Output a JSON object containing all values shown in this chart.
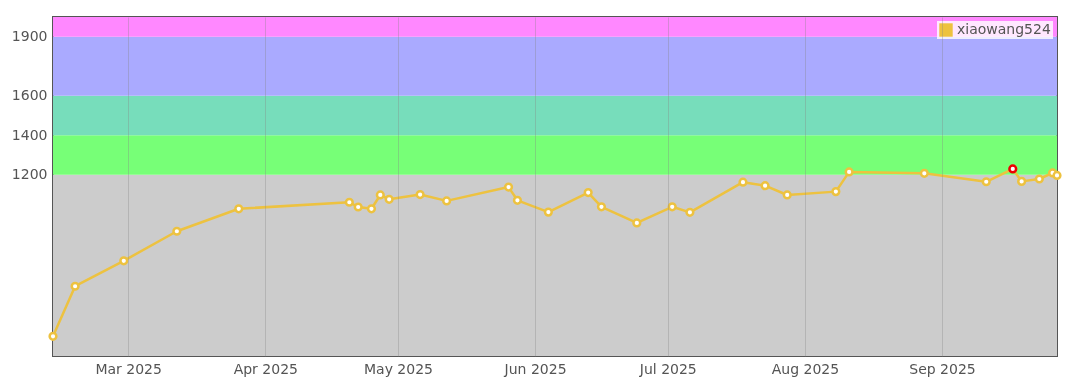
{
  "chart_data": {
    "type": "line",
    "x": [
      "2025-02-12",
      "2025-02-17",
      "2025-02-28",
      "2025-03-12",
      "2025-03-26",
      "2025-04-20",
      "2025-04-22",
      "2025-04-25",
      "2025-04-27",
      "2025-04-29",
      "2025-05-06",
      "2025-05-12",
      "2025-05-26",
      "2025-05-28",
      "2025-06-04",
      "2025-06-13",
      "2025-06-16",
      "2025-06-24",
      "2025-07-02",
      "2025-07-06",
      "2025-07-18",
      "2025-07-23",
      "2025-07-28",
      "2025-08-08",
      "2025-08-11",
      "2025-08-28",
      "2025-09-11",
      "2025-09-17",
      "2025-09-19",
      "2025-09-23",
      "2025-09-26",
      "2025-09-27"
    ],
    "series": [
      {
        "name": "xiaowang524",
        "color": "#edc240",
        "values": [
          380,
          634,
          763,
          913,
          1027,
          1060,
          1036,
          1027,
          1097,
          1075,
          1099,
          1067,
          1137,
          1070,
          1010,
          1109,
          1037,
          955,
          1037,
          1009,
          1162,
          1144,
          1097,
          1114,
          1214,
          1207,
          1164,
          1229,
          1166,
          1178,
          1209,
          1196
        ],
        "colors": [
          "#edc240",
          "#edc240",
          "#edc240",
          "#edc240",
          "#edc240",
          "#edc240",
          "#edc240",
          "#edc240",
          "#edc240",
          "#edc240",
          "#edc240",
          "#edc240",
          "#edc240",
          "#edc240",
          "#edc240",
          "#edc240",
          "#edc240",
          "#edc240",
          "#edc240",
          "#edc240",
          "#edc240",
          "#edc240",
          "#edc240",
          "#edc240",
          "#edc240",
          "#edc240",
          "#edc240",
          "#ee0000",
          "#edc240",
          "#edc240",
          "#edc240",
          "#edc240"
        ]
      }
    ],
    "xlim": [
      "2025-02-12",
      "2025-09-27"
    ],
    "xticks": [
      {
        "value": "2025-03-01",
        "label": "Mar 2025"
      },
      {
        "value": "2025-04-01",
        "label": "Apr 2025"
      },
      {
        "value": "2025-05-01",
        "label": "May 2025"
      },
      {
        "value": "2025-06-01",
        "label": "Jun 2025"
      },
      {
        "value": "2025-07-01",
        "label": "Jul 2025"
      },
      {
        "value": "2025-08-01",
        "label": "Aug 2025"
      },
      {
        "value": "2025-09-01",
        "label": "Sep 2025"
      }
    ],
    "ylim": [
      280,
      2000
    ],
    "yticks": [
      1200,
      1400,
      1600,
      1900
    ],
    "bands": [
      {
        "axis": "y",
        "from": 280,
        "to": 1200,
        "color": "#cccccc"
      },
      {
        "axis": "y",
        "from": 1200,
        "to": 1400,
        "color": "#77ff77"
      },
      {
        "axis": "y",
        "from": 1400,
        "to": 1600,
        "color": "#77ddbb"
      },
      {
        "axis": "y",
        "from": 1600,
        "to": 1900,
        "color": "#aaaaff"
      },
      {
        "axis": "y",
        "from": 1900,
        "to": 2000,
        "color": "#ff88ff"
      }
    ],
    "grid": "x",
    "legend": "top right",
    "marker": "circle",
    "line_style": "solid"
  }
}
